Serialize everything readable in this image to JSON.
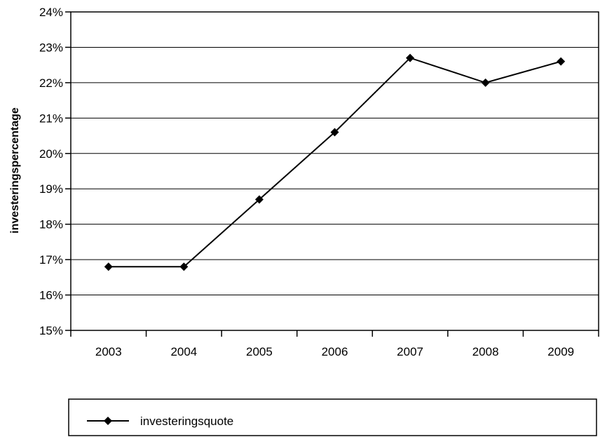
{
  "chart_data": {
    "type": "line",
    "categories": [
      "2003",
      "2004",
      "2005",
      "2006",
      "2007",
      "2008",
      "2009"
    ],
    "series": [
      {
        "name": "investeringsquote",
        "values": [
          16.8,
          16.8,
          18.7,
          20.6,
          22.7,
          22.0,
          22.6
        ],
        "color": "#000000",
        "marker": "diamond"
      }
    ],
    "ylabel": "investeringspercentage",
    "xlabel": "",
    "ylim": [
      15,
      24
    ],
    "yticks": [
      15,
      16,
      17,
      18,
      19,
      20,
      21,
      22,
      23,
      24
    ],
    "ytick_labels": [
      "15%",
      "16%",
      "17%",
      "18%",
      "19%",
      "20%",
      "21%",
      "22%",
      "23%",
      "24%"
    ],
    "grid": "horizontal",
    "legend_position": "bottom"
  }
}
